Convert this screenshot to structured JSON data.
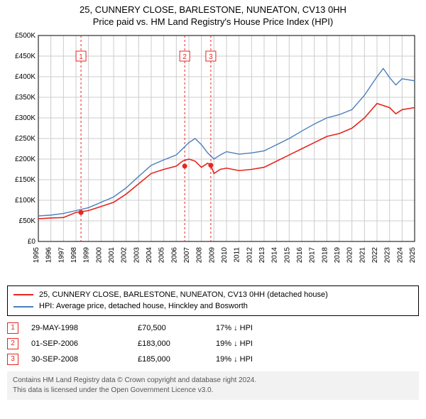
{
  "title_main": "25, CUNNERY CLOSE, BARLESTONE, NUNEATON, CV13 0HH",
  "title_sub": "Price paid vs. HM Land Registry's House Price Index (HPI)",
  "chart": {
    "type": "line",
    "background_color": "#ffffff",
    "grid_color": "#cccccc",
    "axis_color": "#000000",
    "x_years": [
      1995,
      1996,
      1997,
      1998,
      1999,
      2000,
      2001,
      2002,
      2003,
      2004,
      2005,
      2006,
      2007,
      2008,
      2009,
      2010,
      2011,
      2012,
      2013,
      2014,
      2015,
      2016,
      2017,
      2018,
      2019,
      2020,
      2021,
      2022,
      2023,
      2024,
      2025
    ],
    "ylim": [
      0,
      500000
    ],
    "ytick_step": 50000,
    "y_labels": [
      "£0",
      "£50K",
      "£100K",
      "£150K",
      "£200K",
      "£250K",
      "£300K",
      "£350K",
      "£400K",
      "£450K",
      "£500K"
    ],
    "series": [
      {
        "name": "property",
        "color": "#e52620",
        "width": 1.6,
        "points": [
          [
            1995,
            55000
          ],
          [
            1996,
            57000
          ],
          [
            1997,
            58000
          ],
          [
            1998,
            70500
          ],
          [
            1999,
            75000
          ],
          [
            2000,
            85000
          ],
          [
            2001,
            95000
          ],
          [
            2002,
            115000
          ],
          [
            2003,
            140000
          ],
          [
            2004,
            165000
          ],
          [
            2005,
            175000
          ],
          [
            2006,
            183000
          ],
          [
            2006.5,
            195000
          ],
          [
            2007,
            200000
          ],
          [
            2007.5,
            195000
          ],
          [
            2008,
            180000
          ],
          [
            2008.5,
            190000
          ],
          [
            2008.75,
            185000
          ],
          [
            2009,
            165000
          ],
          [
            2009.5,
            175000
          ],
          [
            2010,
            178000
          ],
          [
            2011,
            172000
          ],
          [
            2012,
            175000
          ],
          [
            2013,
            180000
          ],
          [
            2014,
            195000
          ],
          [
            2015,
            210000
          ],
          [
            2016,
            225000
          ],
          [
            2017,
            240000
          ],
          [
            2018,
            255000
          ],
          [
            2019,
            262000
          ],
          [
            2020,
            275000
          ],
          [
            2021,
            300000
          ],
          [
            2022,
            335000
          ],
          [
            2023,
            325000
          ],
          [
            2023.5,
            310000
          ],
          [
            2024,
            320000
          ],
          [
            2025,
            325000
          ]
        ]
      },
      {
        "name": "hpi",
        "color": "#4a7ebb",
        "width": 1.4,
        "points": [
          [
            1995,
            62000
          ],
          [
            1996,
            64000
          ],
          [
            1997,
            68000
          ],
          [
            1998,
            75000
          ],
          [
            1999,
            82000
          ],
          [
            2000,
            95000
          ],
          [
            2001,
            108000
          ],
          [
            2002,
            130000
          ],
          [
            2003,
            158000
          ],
          [
            2004,
            185000
          ],
          [
            2005,
            198000
          ],
          [
            2006,
            210000
          ],
          [
            2006.5,
            225000
          ],
          [
            2007,
            240000
          ],
          [
            2007.5,
            250000
          ],
          [
            2008,
            235000
          ],
          [
            2008.5,
            215000
          ],
          [
            2009,
            200000
          ],
          [
            2009.5,
            210000
          ],
          [
            2010,
            218000
          ],
          [
            2011,
            212000
          ],
          [
            2012,
            215000
          ],
          [
            2013,
            220000
          ],
          [
            2014,
            235000
          ],
          [
            2015,
            250000
          ],
          [
            2016,
            268000
          ],
          [
            2017,
            285000
          ],
          [
            2018,
            300000
          ],
          [
            2019,
            308000
          ],
          [
            2020,
            320000
          ],
          [
            2021,
            355000
          ],
          [
            2022,
            400000
          ],
          [
            2022.5,
            420000
          ],
          [
            2023,
            398000
          ],
          [
            2023.5,
            380000
          ],
          [
            2024,
            395000
          ],
          [
            2025,
            390000
          ]
        ]
      }
    ],
    "sale_markers": [
      {
        "num": "1",
        "year": 1998.4,
        "price": 70500
      },
      {
        "num": "2",
        "year": 2006.67,
        "price": 183000
      },
      {
        "num": "3",
        "year": 2008.75,
        "price": 185000
      }
    ],
    "marker_line_color": "#e52620",
    "marker_dot_color": "#e52620",
    "marker_box_border": "#e52620"
  },
  "legend": {
    "rows": [
      {
        "color": "#e52620",
        "text": "25, CUNNERY CLOSE, BARLESTONE, NUNEATON, CV13 0HH (detached house)"
      },
      {
        "color": "#4a7ebb",
        "text": "HPI: Average price, detached house, Hinckley and Bosworth"
      }
    ]
  },
  "events": [
    {
      "num": "1",
      "date": "29-MAY-1998",
      "price": "£70,500",
      "hpi": "17% ↓ HPI"
    },
    {
      "num": "2",
      "date": "01-SEP-2006",
      "price": "£183,000",
      "hpi": "19% ↓ HPI"
    },
    {
      "num": "3",
      "date": "30-SEP-2008",
      "price": "£185,000",
      "hpi": "19% ↓ HPI"
    }
  ],
  "footer": {
    "line1": "Contains HM Land Registry data © Crown copyright and database right 2024.",
    "line2": "This data is licensed under the Open Government Licence v3.0."
  }
}
